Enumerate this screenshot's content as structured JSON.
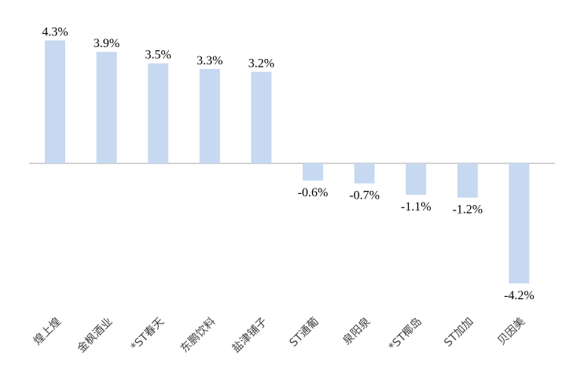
{
  "chart_data": {
    "type": "bar",
    "categories": [
      "煌上煌",
      "金枫酒业",
      "*ST春天",
      "东鹏饮料",
      "盐津铺子",
      "ST通葡",
      "泉阳泉",
      "*ST椰岛",
      "ST加加",
      "贝因美"
    ],
    "values": [
      4.3,
      3.9,
      3.5,
      3.3,
      3.2,
      -0.6,
      -0.7,
      -1.1,
      -1.2,
      -4.2
    ],
    "value_labels": [
      "4.3%",
      "3.9%",
      "3.5%",
      "3.3%",
      "3.2%",
      "-0.6%",
      "-0.7%",
      "-1.1%",
      "-1.2%",
      "-4.2%"
    ],
    "title": "",
    "xlabel": "",
    "ylabel": "",
    "unit": "%",
    "grid": false,
    "legend": "none",
    "bar_color": "#c6d9f1",
    "axis_color": "#a6a6a6"
  }
}
